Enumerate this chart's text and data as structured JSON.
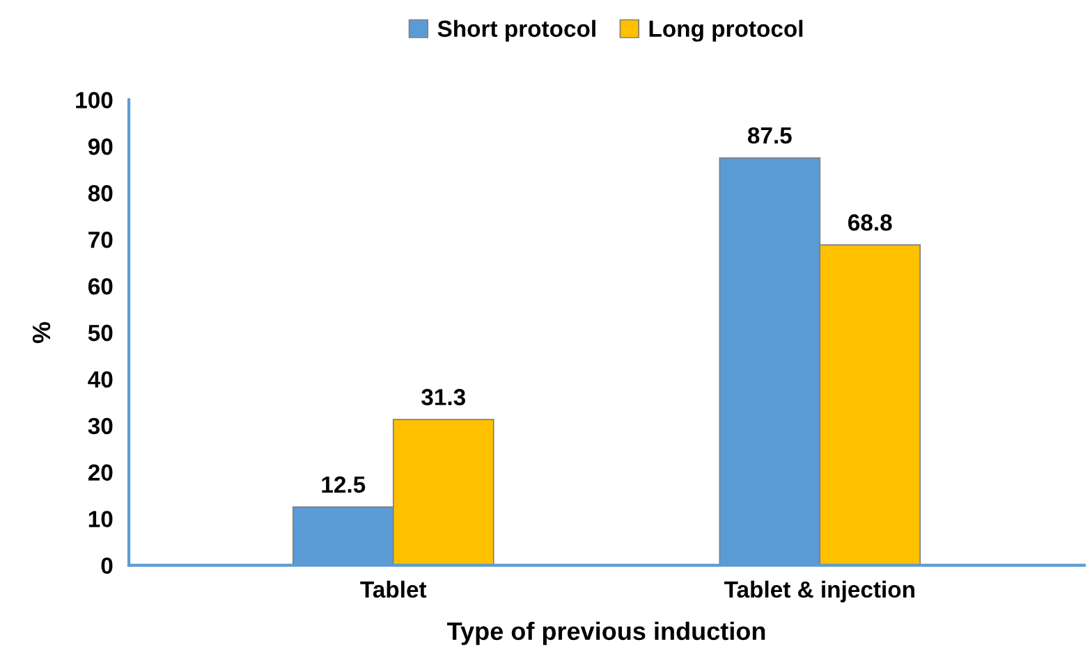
{
  "chart_data": {
    "type": "bar",
    "xlabel": "Type of previous induction",
    "ylabel": "%",
    "categories": [
      "Tablet",
      "Tablet & injection"
    ],
    "series": [
      {
        "name": "Short protocol",
        "color": "#5b9bd5",
        "values": [
          12.5,
          87.5
        ]
      },
      {
        "name": "Long protocol",
        "color": "#ffc000",
        "values": [
          31.3,
          68.8
        ]
      }
    ],
    "ylim": [
      0,
      100
    ],
    "yticks": [
      0,
      10,
      20,
      30,
      40,
      50,
      60,
      70,
      80,
      90,
      100
    ],
    "grid": false,
    "legend": "top",
    "data_labels": true
  }
}
